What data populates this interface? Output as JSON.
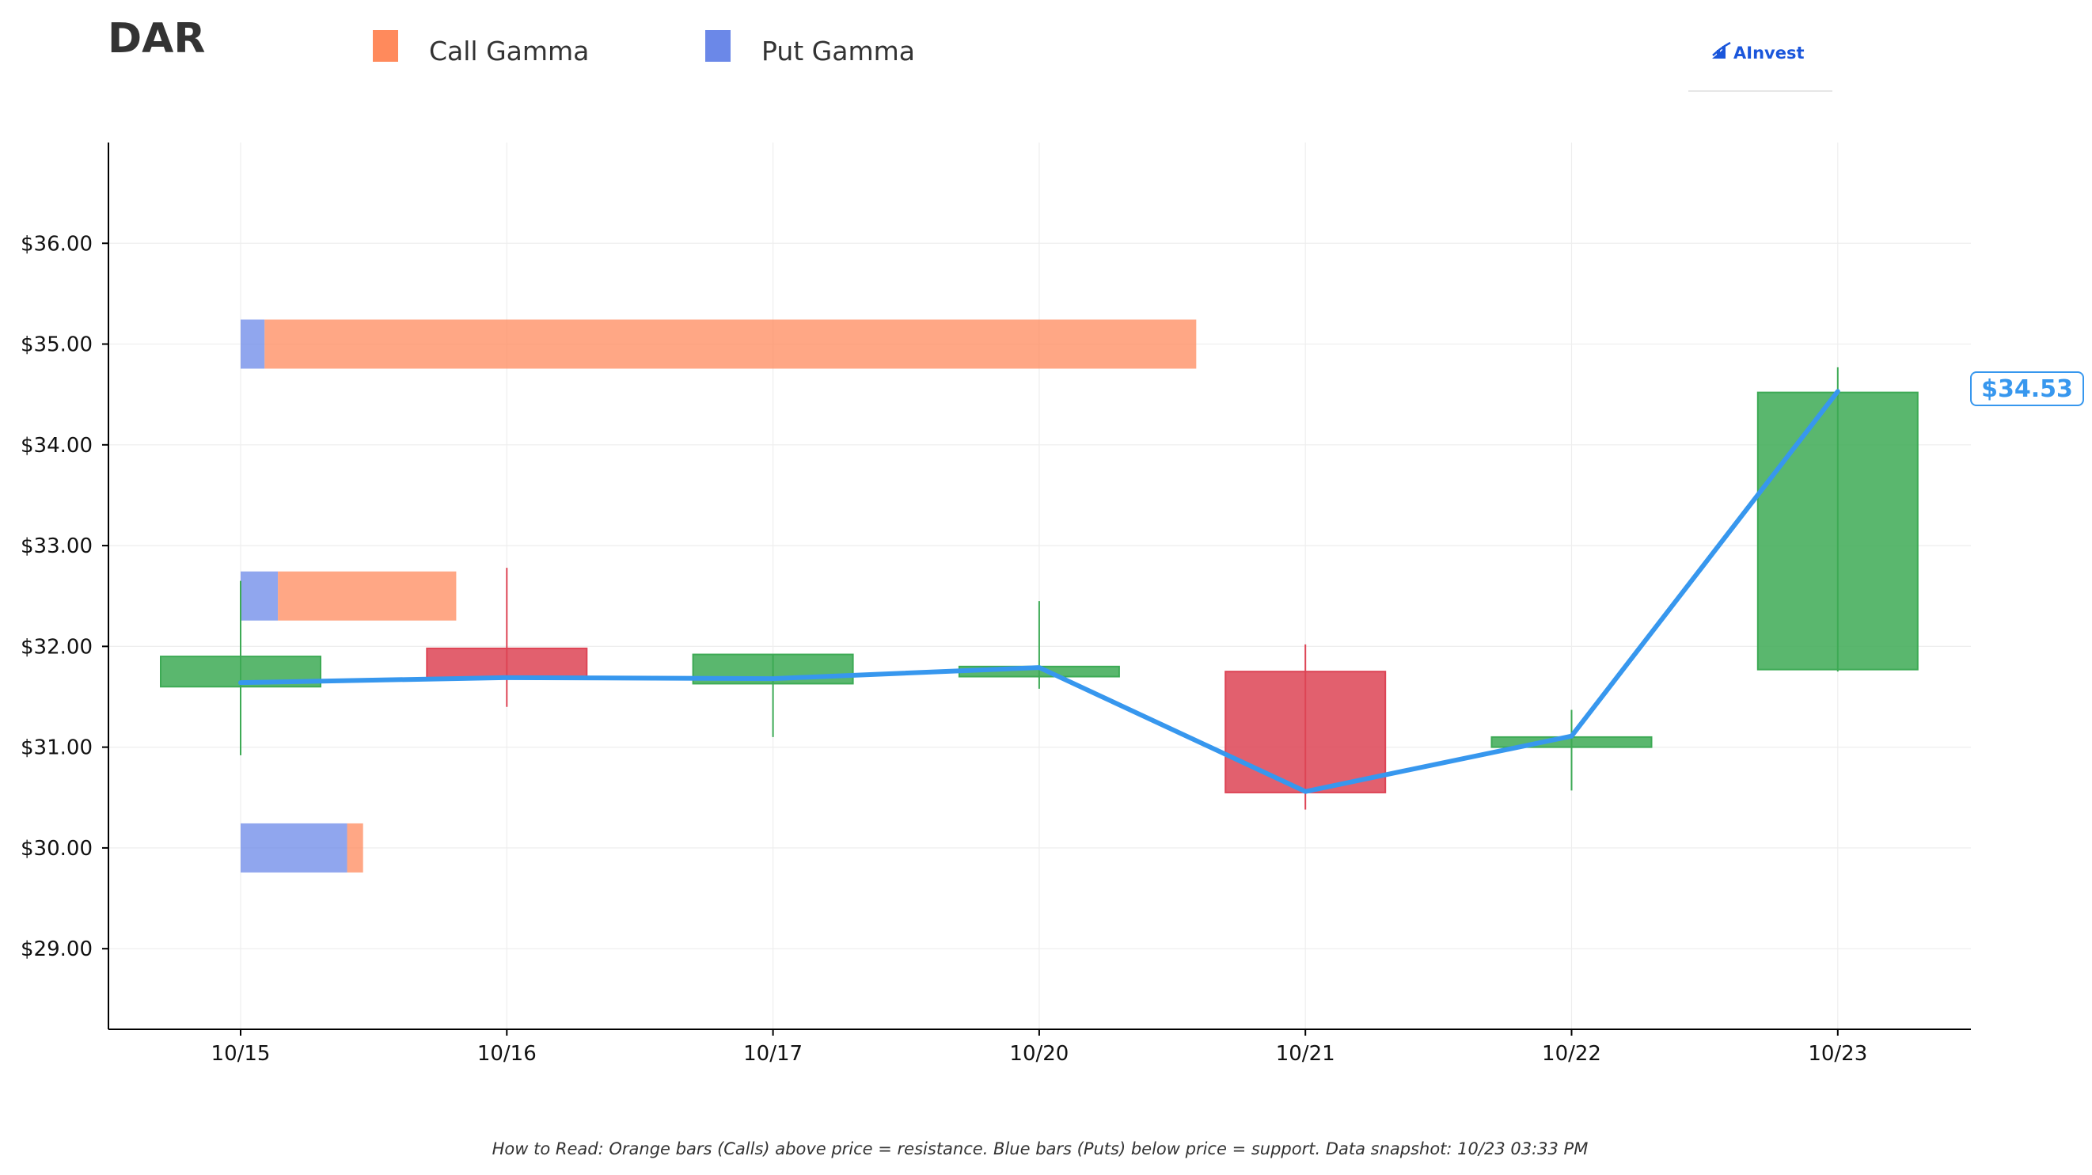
{
  "ticker": "DAR",
  "legend": [
    {
      "label": "Call Gamma",
      "color": "#FF8A5C"
    },
    {
      "label": "Put Gamma",
      "color": "#6B88E8"
    }
  ],
  "brand": {
    "name": "AInvest",
    "color": "#1A56DB"
  },
  "current_price_label": "$34.53",
  "footer": "How to Read: Orange bars (Calls) above price = resistance. Blue bars (Puts) below price = support. Data snapshot: 10/23 03:33 PM",
  "colors": {
    "up": "#3DAA55",
    "down": "#DD4455",
    "price_line": "#3797EE",
    "call": "#FF8A5C",
    "put": "#6B88E8"
  },
  "chart_data": {
    "type": "candlestick",
    "categories": [
      "10/15",
      "10/16",
      "10/17",
      "10/20",
      "10/21",
      "10/22",
      "10/23"
    ],
    "ylim": [
      28.2,
      37.0
    ],
    "yticks": [
      29,
      30,
      31,
      32,
      33,
      34,
      35,
      36
    ],
    "ytick_labels": [
      "$29.00",
      "$30.00",
      "$31.00",
      "$32.00",
      "$33.00",
      "$34.00",
      "$35.00",
      "$36.00"
    ],
    "grid": true,
    "legend_position": "top",
    "candles": [
      {
        "date": "10/15",
        "open": 31.6,
        "close": 31.9,
        "high": 32.65,
        "low": 30.92
      },
      {
        "date": "10/16",
        "open": 31.98,
        "close": 31.68,
        "high": 32.78,
        "low": 31.4
      },
      {
        "date": "10/17",
        "open": 31.63,
        "close": 31.92,
        "high": 31.92,
        "low": 31.1
      },
      {
        "date": "10/20",
        "open": 31.7,
        "close": 31.8,
        "high": 32.45,
        "low": 31.58
      },
      {
        "date": "10/21",
        "open": 31.75,
        "close": 30.55,
        "high": 32.02,
        "low": 30.38
      },
      {
        "date": "10/22",
        "open": 31.0,
        "close": 31.1,
        "high": 31.37,
        "low": 30.57
      },
      {
        "date": "10/23",
        "open": 31.77,
        "close": 34.52,
        "high": 34.77,
        "low": 31.75
      }
    ],
    "price_line": [
      31.64,
      31.69,
      31.68,
      31.79,
      30.56,
      31.11,
      34.53
    ],
    "gamma_levels": [
      {
        "strike": 35.0,
        "put_gamma": 0.09,
        "call_gamma": 3.5
      },
      {
        "strike": 32.5,
        "put_gamma": 0.14,
        "call_gamma": 0.67
      },
      {
        "strike": 30.0,
        "put_gamma": 0.4,
        "call_gamma": 0.06
      }
    ]
  }
}
